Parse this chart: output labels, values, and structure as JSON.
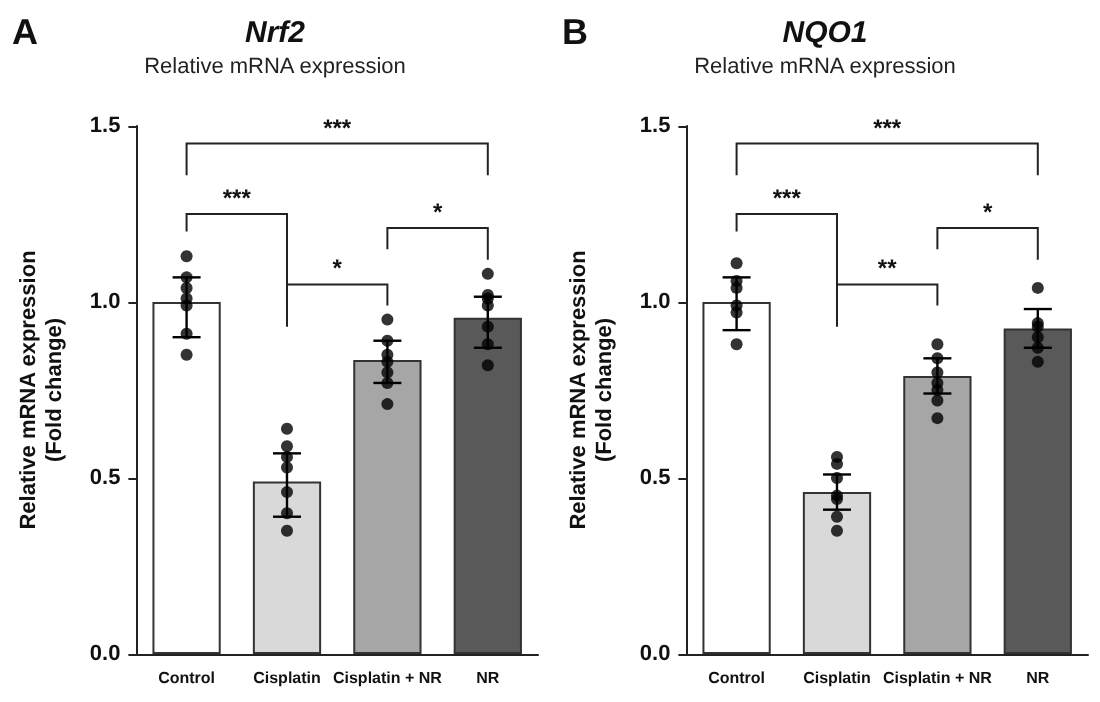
{
  "chart_data": [
    {
      "type": "bar",
      "title": "Nrf2",
      "subtitle": "Relative mRNA expression",
      "ylabel": "Relative mRNA expression\n(Fold change)",
      "categories": [
        "Control",
        "Cisplatin",
        "Cisplatin + NR",
        "NR"
      ],
      "annotations": [
        "A",
        "***",
        "***",
        "*",
        "*"
      ],
      "ylim": [
        0,
        1.5
      ],
      "yticks": [
        {
          "value": 0,
          "label": "0.0"
        },
        {
          "value": 0.5,
          "label": "0.5"
        },
        {
          "value": 1,
          "label": "1.0"
        },
        {
          "value": 1.5,
          "label": "1.5"
        }
      ],
      "marker": "circle",
      "series": [
        {
          "colors": [
            "#ffffff",
            "#d9d9d9",
            "#a6a6a6",
            "#595959"
          ],
          "values": [
            1.0,
            0.49,
            0.835,
            0.955
          ],
          "errors": [
            [
              0.9,
              1.07
            ],
            [
              0.39,
              0.57
            ],
            [
              0.77,
              0.89
            ],
            [
              0.87,
              1.015
            ]
          ]
        },
        {
          "type": "scatter",
          "color": "#000000",
          "x": [
            "Control",
            "Control",
            "Control",
            "Control",
            "Control",
            "Control",
            "Control",
            "Cisplatin",
            "Cisplatin",
            "Cisplatin",
            "Cisplatin",
            "Cisplatin",
            "Cisplatin",
            "Cisplatin",
            "Cisplatin + NR",
            "Cisplatin + NR",
            "Cisplatin + NR",
            "Cisplatin + NR",
            "Cisplatin + NR",
            "Cisplatin + NR",
            "Cisplatin + NR",
            "NR",
            "NR",
            "NR",
            "NR",
            "NR",
            "NR",
            "NR"
          ],
          "values": [
            1.13,
            1.07,
            1.04,
            1.01,
            0.99,
            0.91,
            0.85,
            0.64,
            0.59,
            0.56,
            0.53,
            0.46,
            0.4,
            0.35,
            0.95,
            0.89,
            0.85,
            0.83,
            0.8,
            0.77,
            0.71,
            1.08,
            1.02,
            1.01,
            0.99,
            0.93,
            0.88,
            0.82
          ]
        }
      ]
    },
    {
      "type": "bar",
      "title": "NQO1",
      "subtitle": "Relative mRNA expression",
      "ylabel": "Relative mRNA expression\n(Fold change)",
      "categories": [
        "Control",
        "Cisplatin",
        "Cisplatin + NR",
        "NR"
      ],
      "annotations": [
        "B",
        "***",
        "***",
        "**",
        "*"
      ],
      "ylim": [
        0,
        1.5
      ],
      "yticks": [
        {
          "value": 0,
          "label": "0.0"
        },
        {
          "value": 0.5,
          "label": "0.5"
        },
        {
          "value": 1,
          "label": "1.0"
        },
        {
          "value": 1.5,
          "label": "1.5"
        }
      ],
      "marker": "circle",
      "series": [
        {
          "colors": [
            "#ffffff",
            "#d9d9d9",
            "#a6a6a6",
            "#595959"
          ],
          "values": [
            1.0,
            0.46,
            0.79,
            0.925
          ],
          "errors": [
            [
              0.92,
              1.07
            ],
            [
              0.41,
              0.51
            ],
            [
              0.74,
              0.84
            ],
            [
              0.87,
              0.98
            ]
          ]
        },
        {
          "type": "scatter",
          "color": "#000000",
          "x": [
            "Control",
            "Control",
            "Control",
            "Control",
            "Control",
            "Control",
            "Cisplatin",
            "Cisplatin",
            "Cisplatin",
            "Cisplatin",
            "Cisplatin",
            "Cisplatin",
            "Cisplatin",
            "Cisplatin + NR",
            "Cisplatin + NR",
            "Cisplatin + NR",
            "Cisplatin + NR",
            "Cisplatin + NR",
            "Cisplatin + NR",
            "Cisplatin + NR",
            "NR",
            "NR",
            "NR",
            "NR",
            "NR",
            "NR"
          ],
          "values": [
            1.11,
            1.06,
            1.04,
            0.99,
            0.97,
            0.88,
            0.56,
            0.54,
            0.5,
            0.45,
            0.44,
            0.39,
            0.35,
            0.88,
            0.84,
            0.8,
            0.77,
            0.75,
            0.72,
            0.67,
            1.04,
            0.94,
            0.93,
            0.9,
            0.87,
            0.83
          ]
        }
      ]
    }
  ]
}
